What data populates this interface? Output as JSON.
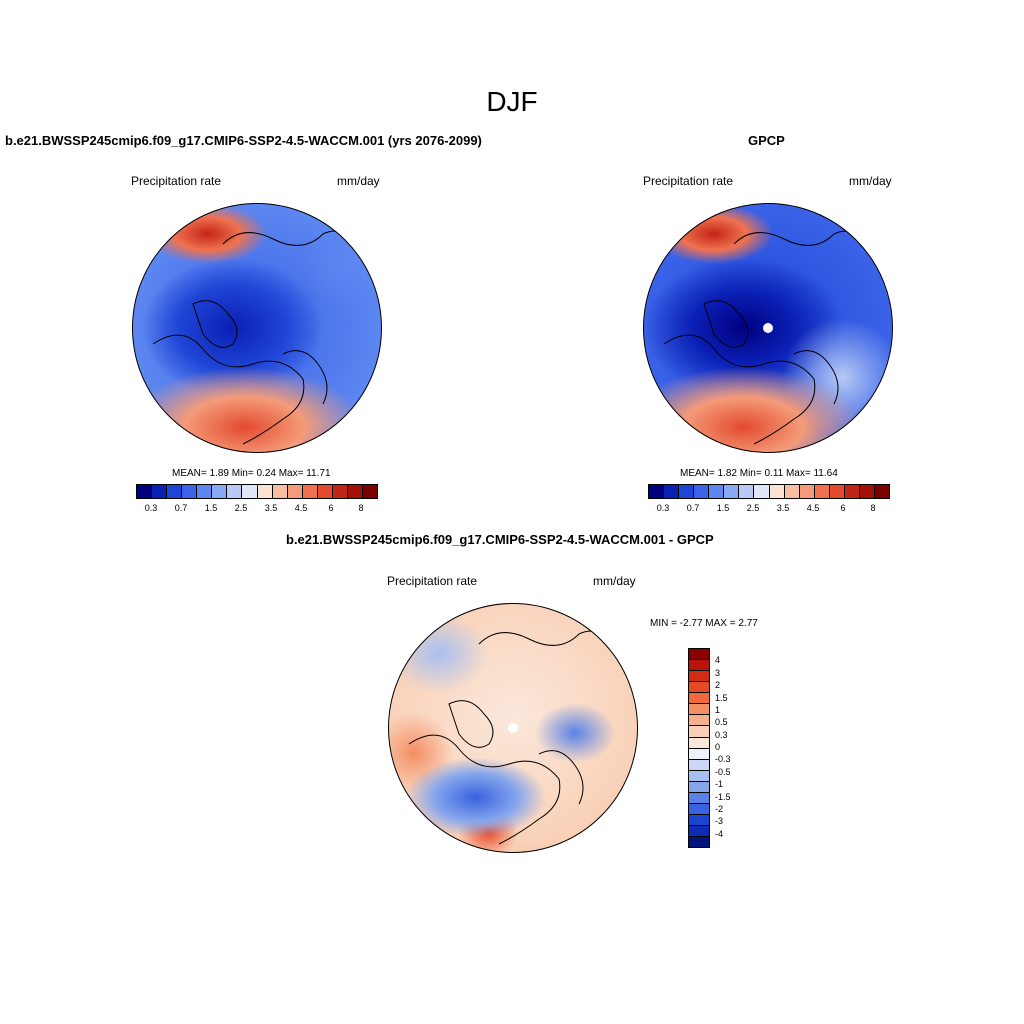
{
  "figure": {
    "season": "DJF"
  },
  "panels": {
    "model": {
      "title": "b.e21.BWSSP245cmip6.f09_g17.CMIP6-SSP2-4.5-WACCM.001 (yrs 2076-2099)",
      "variable": "Precipitation rate",
      "units": "mm/day",
      "stats": "MEAN=   1.89  Min=    0.24  Max=  11.71"
    },
    "obs": {
      "title": "GPCP",
      "variable": "Precipitation rate",
      "units": "mm/day",
      "stats": "MEAN=   1.82  Min=    0.11  Max=  11.64"
    },
    "diff": {
      "title": "b.e21.BWSSP245cmip6.f09_g17.CMIP6-SSP2-4.5-WACCM.001 - GPCP",
      "variable": "Precipitation rate",
      "units": "mm/day",
      "stats": "MIN =  -2.77 MAX =   2.77"
    }
  },
  "colorbar_main": {
    "colors": [
      "#000080",
      "#0a1fb4",
      "#1f45d6",
      "#3a63e8",
      "#5c86f0",
      "#8aa9f3",
      "#b7caf5",
      "#dfe7f8",
      "#fbe2d3",
      "#f8c0a3",
      "#f49b79",
      "#ef7250",
      "#e34a2e",
      "#c42416",
      "#a2100a",
      "#7a0000"
    ],
    "labels": [
      "0.3",
      "0.7",
      "1.5",
      "2.5",
      "3.5",
      "4.5",
      "6",
      "8"
    ]
  },
  "colorbar_diff": {
    "colors": [
      "#8a0000",
      "#b8140b",
      "#d42b14",
      "#e64a25",
      "#f06a3d",
      "#f48e63",
      "#f6ae8b",
      "#f9d1b8",
      "#fbe8db",
      "#eef2fb",
      "#cbd9f6",
      "#a8c0f1",
      "#86a6ec",
      "#5a82e6",
      "#3862e0",
      "#1c44d2",
      "#0d2cb4",
      "#001480"
    ],
    "labels": [
      "4",
      "3",
      "2",
      "1.5",
      "1",
      "0.5",
      "0.3",
      "0",
      "-0.3",
      "-0.5",
      "-1",
      "-1.5",
      "-2",
      "-3",
      "-4"
    ]
  }
}
